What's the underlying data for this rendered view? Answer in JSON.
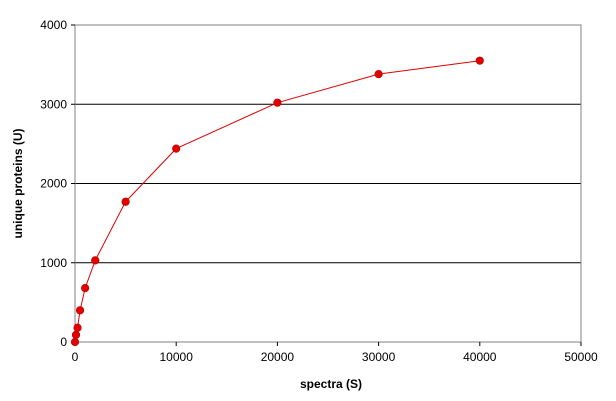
{
  "chart_data": {
    "type": "line",
    "title": "",
    "xlabel": "spectra (S)",
    "ylabel": "unique proteins (U)",
    "xlim": [
      0,
      50000
    ],
    "ylim": [
      0,
      4000
    ],
    "x_ticks": [
      0,
      10000,
      20000,
      30000,
      40000,
      50000
    ],
    "y_ticks": [
      0,
      1000,
      2000,
      3000,
      4000
    ],
    "x_tick_labels": [
      "0",
      "10000",
      "20000",
      "30000",
      "40000",
      "50000"
    ],
    "y_tick_labels": [
      "0",
      "1000",
      "2000",
      "3000",
      "4000"
    ],
    "grid": "horizontal",
    "legend": "none",
    "series_color": "#e00000",
    "gridline_color": "#000000",
    "series": [
      {
        "x": [
          0,
          100,
          250,
          500,
          1000,
          2000,
          5000,
          10000,
          20000,
          30000,
          40000
        ],
        "y": [
          0,
          90,
          180,
          400,
          680,
          1030,
          1770,
          2440,
          3020,
          3380,
          3550
        ]
      }
    ]
  }
}
